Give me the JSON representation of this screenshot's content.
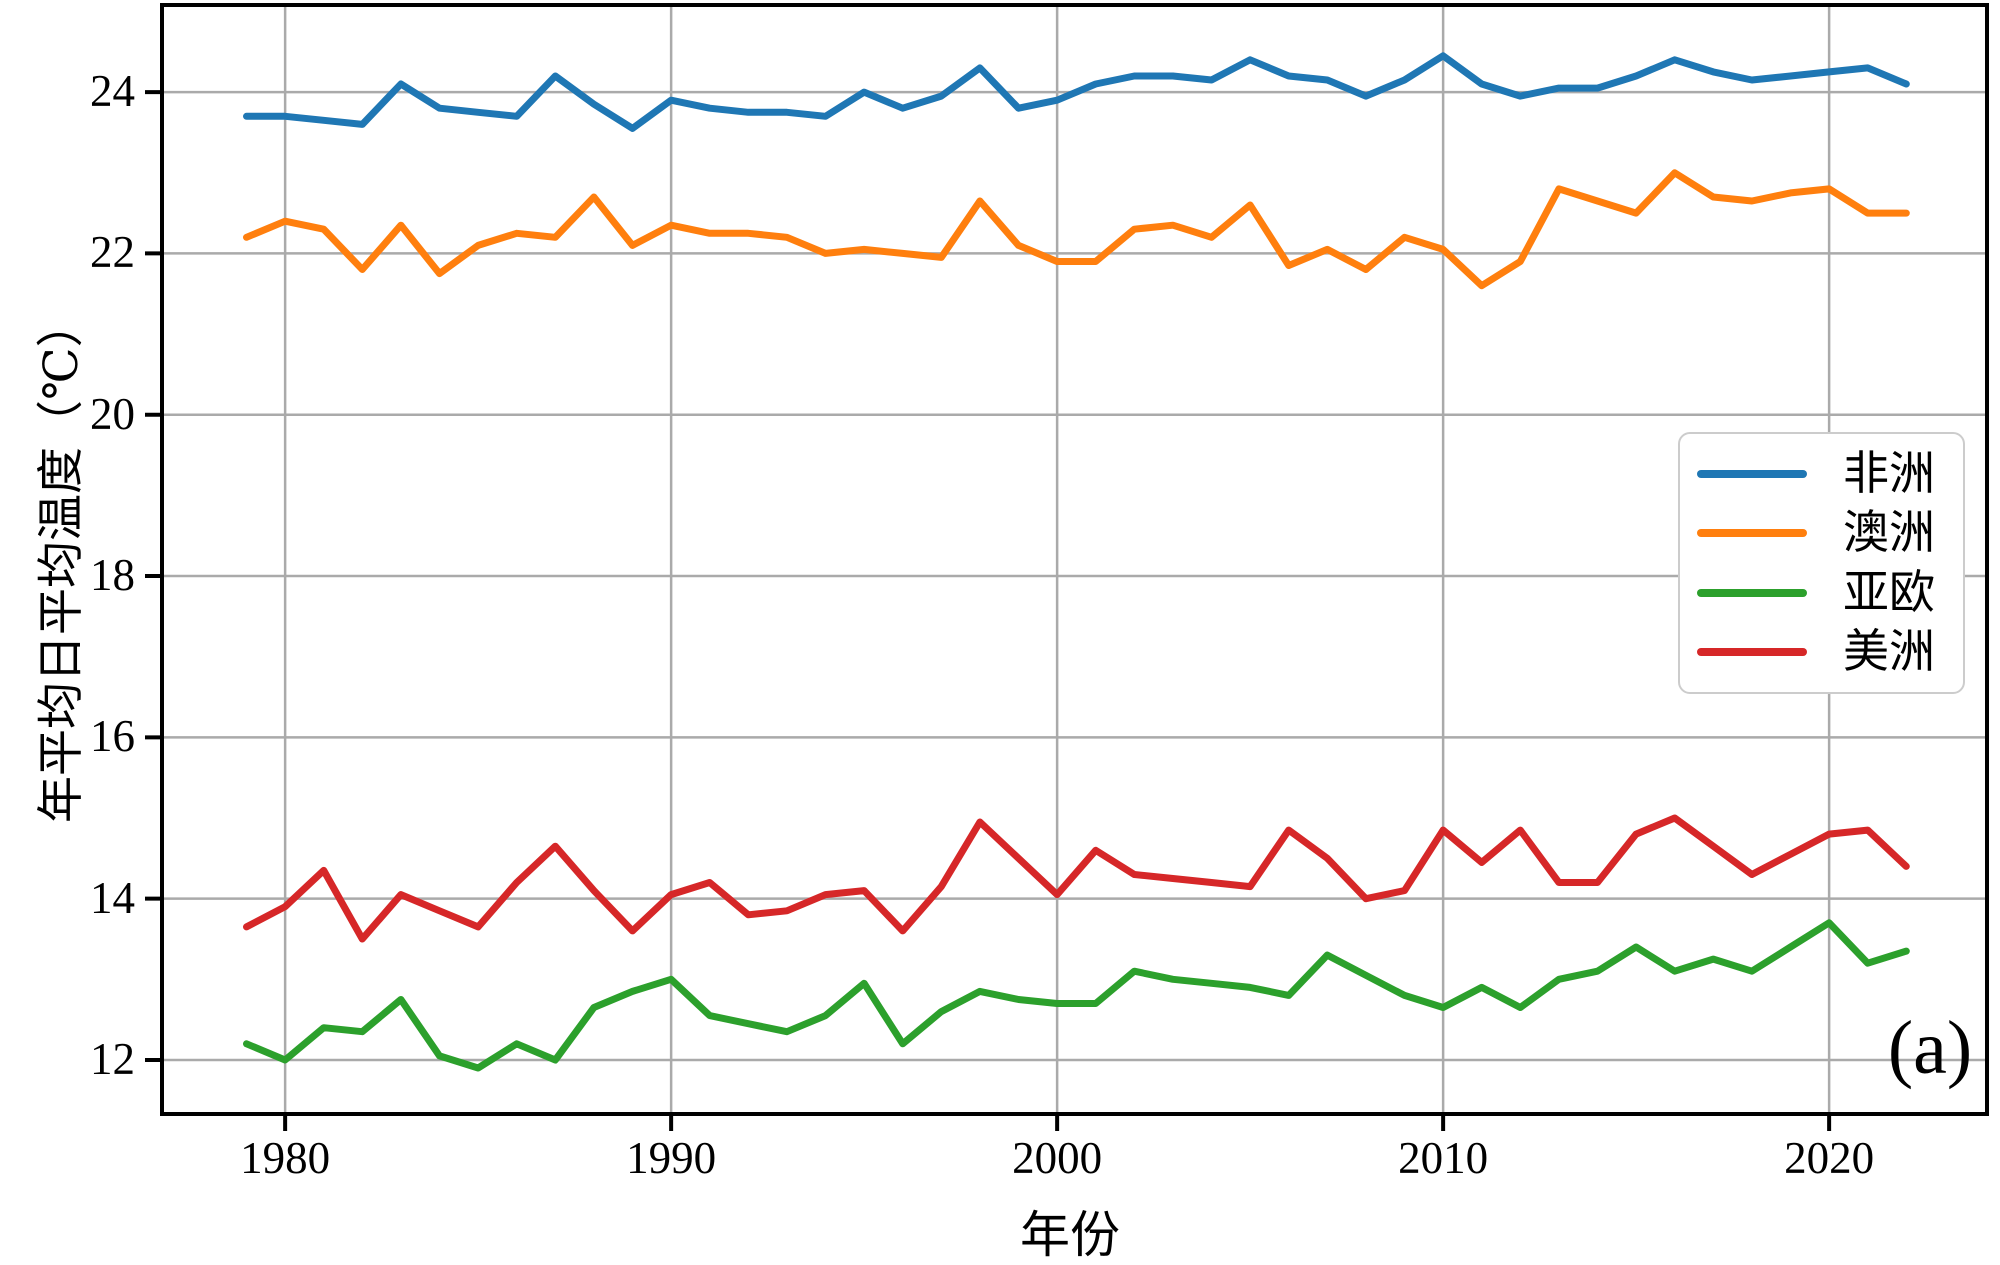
{
  "figure": {
    "panel_label": "(a)"
  },
  "chart_data": {
    "type": "line",
    "title": "",
    "xlabel": "年份",
    "ylabel": "年平均日平均温度（℃）",
    "x": [
      1979,
      1980,
      1981,
      1982,
      1983,
      1984,
      1985,
      1986,
      1987,
      1988,
      1989,
      1990,
      1991,
      1992,
      1993,
      1994,
      1995,
      1996,
      1997,
      1998,
      1999,
      2000,
      2001,
      2002,
      2003,
      2004,
      2005,
      2006,
      2007,
      2008,
      2009,
      2010,
      2011,
      2012,
      2013,
      2014,
      2015,
      2016,
      2017,
      2018,
      2019,
      2020,
      2021,
      2022
    ],
    "series": [
      {
        "name": "非洲",
        "color": "#1f77b4",
        "values": [
          23.7,
          23.7,
          23.65,
          23.6,
          24.1,
          23.8,
          23.75,
          23.7,
          24.2,
          23.85,
          23.55,
          23.9,
          23.8,
          23.75,
          23.75,
          23.7,
          24.0,
          23.8,
          23.95,
          24.3,
          23.8,
          23.9,
          24.1,
          24.2,
          24.2,
          24.15,
          24.4,
          24.2,
          24.15,
          23.95,
          24.15,
          24.45,
          24.1,
          23.95,
          24.05,
          24.05,
          24.2,
          24.4,
          24.25,
          24.15,
          24.2,
          24.25,
          24.3,
          24.1
        ]
      },
      {
        "name": "澳洲",
        "color": "#ff7f0e",
        "values": [
          22.2,
          22.4,
          22.3,
          21.8,
          22.35,
          21.75,
          22.1,
          22.25,
          22.2,
          22.7,
          22.1,
          22.35,
          22.25,
          22.25,
          22.2,
          22.0,
          22.05,
          22.0,
          21.95,
          22.65,
          22.1,
          21.9,
          21.9,
          22.3,
          22.35,
          22.2,
          22.6,
          21.85,
          22.05,
          21.8,
          22.2,
          22.05,
          21.6,
          21.9,
          22.8,
          22.65,
          22.5,
          23.0,
          22.7,
          22.65,
          22.75,
          22.8,
          22.5,
          22.5
        ]
      },
      {
        "name": "亚欧",
        "color": "#2ca02c",
        "values": [
          12.2,
          12.0,
          12.4,
          12.35,
          12.75,
          12.05,
          11.9,
          12.2,
          12.0,
          12.65,
          12.85,
          13.0,
          12.55,
          12.45,
          12.35,
          12.55,
          12.95,
          12.2,
          12.6,
          12.85,
          12.75,
          12.7,
          12.7,
          13.1,
          13.0,
          12.95,
          12.9,
          12.8,
          13.3,
          13.05,
          12.8,
          12.65,
          12.9,
          12.65,
          13.0,
          13.1,
          13.4,
          13.1,
          13.25,
          13.1,
          13.4,
          13.7,
          13.2,
          13.35
        ]
      },
      {
        "name": "美洲",
        "color": "#d62728",
        "values": [
          13.65,
          13.9,
          14.35,
          13.5,
          14.05,
          13.85,
          13.65,
          14.2,
          14.65,
          14.1,
          13.6,
          14.05,
          14.2,
          13.8,
          13.85,
          14.05,
          14.1,
          13.6,
          14.15,
          14.95,
          14.5,
          14.05,
          14.6,
          14.3,
          14.25,
          14.2,
          14.15,
          14.85,
          14.5,
          14.0,
          14.1,
          14.85,
          14.45,
          14.85,
          14.2,
          14.2,
          14.8,
          15.0,
          14.65,
          14.3,
          14.55,
          14.8,
          14.85,
          14.4
        ]
      }
    ],
    "xlim": [
      1976.81,
      2024.09
    ],
    "ylim": [
      11.33,
      25.08
    ],
    "xticks": [
      1980,
      1990,
      2000,
      2010,
      2020
    ],
    "yticks": [
      12,
      14,
      16,
      18,
      20,
      22,
      24
    ],
    "grid": true,
    "grid_color": "#aaaaaa",
    "spine_color": "#000000",
    "legend_position": "center-right"
  }
}
